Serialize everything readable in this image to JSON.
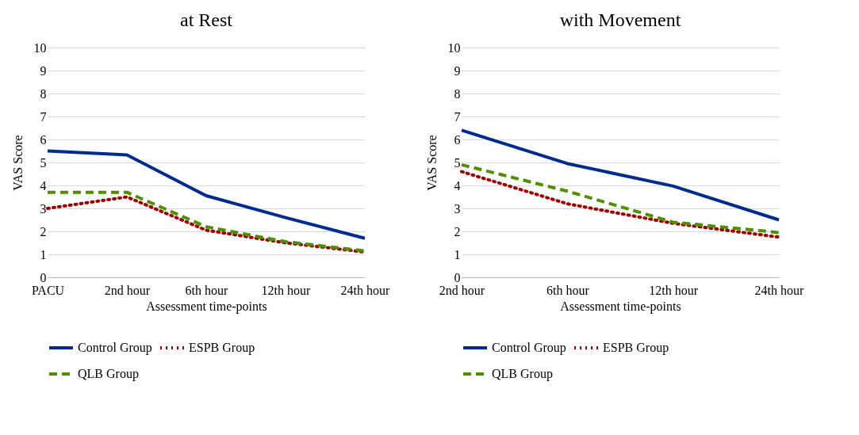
{
  "chart_data": [
    {
      "type": "line",
      "title": "at Rest",
      "xlabel": "Assessment time-points",
      "ylabel": "VAS Score",
      "categories": [
        "PACU",
        "2nd hour",
        "6th hour",
        "12th hour",
        "24th hour"
      ],
      "ylim": [
        0,
        10
      ],
      "yticks": [
        0,
        1,
        2,
        3,
        4,
        5,
        6,
        7,
        8,
        9,
        10
      ],
      "grid": "y",
      "legend": "bottom",
      "series": [
        {
          "name": "Control Group",
          "color": "#002b8f",
          "line_style": "solid",
          "values": [
            5.5,
            5.33,
            3.55,
            2.6,
            1.7
          ]
        },
        {
          "name": "ESPB Group",
          "color": "#a00000",
          "line_style": "dotted",
          "values": [
            3.0,
            3.5,
            2.05,
            1.5,
            1.1
          ]
        },
        {
          "name": "QLB Group",
          "color": "#4f8f00",
          "line_style": "dashed",
          "values": [
            3.7,
            3.7,
            2.2,
            1.55,
            1.15
          ]
        }
      ]
    },
    {
      "type": "line",
      "title": "with Movement",
      "xlabel": "Assessment time-points",
      "ylabel": "VAS Score",
      "categories": [
        "2nd hour",
        "6th hour",
        "12th hour",
        "24th hour"
      ],
      "ylim": [
        0,
        10
      ],
      "yticks": [
        0,
        1,
        2,
        3,
        4,
        5,
        6,
        7,
        8,
        9,
        10
      ],
      "grid": "y",
      "legend": "bottom",
      "series": [
        {
          "name": "Control Group",
          "color": "#002b8f",
          "line_style": "solid",
          "values": [
            6.4,
            4.95,
            3.97,
            2.5
          ]
        },
        {
          "name": "ESPB Group",
          "color": "#a00000",
          "line_style": "dotted",
          "values": [
            4.6,
            3.2,
            2.35,
            1.75
          ]
        },
        {
          "name": "QLB Group",
          "color": "#4f8f00",
          "line_style": "dashed",
          "values": [
            4.9,
            3.75,
            2.4,
            1.95
          ]
        }
      ]
    }
  ]
}
